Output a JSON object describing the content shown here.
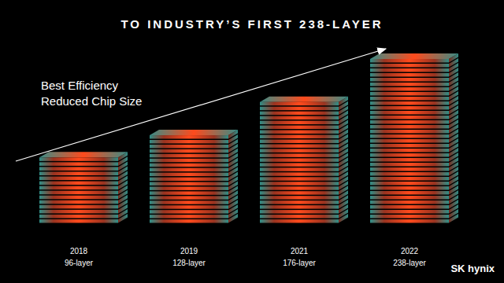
{
  "chart_data": {
    "type": "bar",
    "title": "TO INDUSTRY’S FIRST 238-LAYER",
    "annotations": [
      "Best Efficiency",
      "Reduced Chip Size"
    ],
    "categories": [
      "2018",
      "2019",
      "2021",
      "2022"
    ],
    "values": [
      96,
      128,
      176,
      238
    ],
    "value_labels": [
      "96-layer",
      "128-layer",
      "176-layer",
      "238-layer"
    ],
    "data_labels": true,
    "tick_labels": "x",
    "brand": "SK hynix",
    "color": "#ff4a1c"
  }
}
